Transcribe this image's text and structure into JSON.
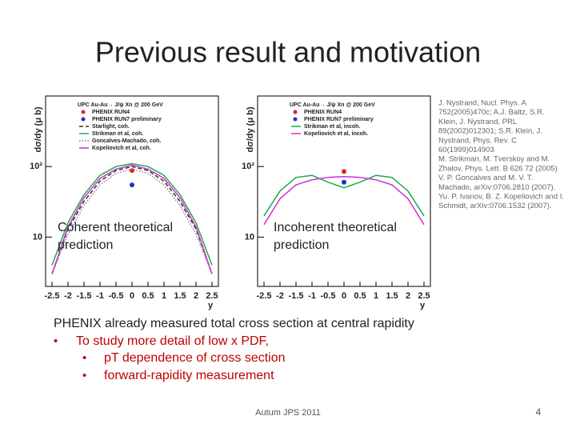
{
  "title": "Previous result and motivation",
  "chart_data": [
    {
      "type": "line",
      "legend_title": "UPC Au-Au→ J/ψ Xn @ 200 GeV",
      "xlabel": "y",
      "ylabel": "dσ/dy (μ b)",
      "xlim": [
        -2.7,
        2.7
      ],
      "xticks": [
        -2.5,
        -2,
        -1.5,
        -1,
        -0.5,
        0,
        0.5,
        1,
        1.5,
        2,
        2.5
      ],
      "ylim": [
        2,
        1000
      ],
      "log_y": true,
      "yticks": [
        10,
        {
          "value": 100,
          "label": "10²"
        }
      ],
      "series": [
        {
          "name": "PHENIX RUN4",
          "color": "#e02020",
          "marker": "point",
          "x": [
            0
          ],
          "values": [
            88
          ]
        },
        {
          "name": "PHENIX RUN7 preliminary",
          "color": "#2030c0",
          "marker": "point",
          "x": [
            0
          ],
          "values": [
            55
          ]
        },
        {
          "name": "Starlight, coh.",
          "color": "#333333",
          "marker": "dashed",
          "x": [
            -2.5,
            -2,
            -1.5,
            -1,
            -0.5,
            0,
            0.5,
            1,
            1.5,
            2,
            2.5
          ],
          "values": [
            3,
            13,
            32,
            62,
            88,
            100,
            88,
            62,
            32,
            13,
            3
          ]
        },
        {
          "name": "Strikman et al, coh.",
          "color": "#22aa44",
          "marker": "solid",
          "x": [
            -2.5,
            -2,
            -1.5,
            -1,
            -0.5,
            0,
            0.5,
            1,
            1.5,
            2,
            2.5
          ],
          "values": [
            4,
            16,
            40,
            75,
            100,
            110,
            100,
            75,
            40,
            16,
            4
          ]
        },
        {
          "name": "Goncalves-Machado, coh.",
          "color": "#888888",
          "marker": "dotted",
          "x": [
            -2.5,
            -2,
            -1.5,
            -1,
            -0.5,
            0,
            0.5,
            1,
            1.5,
            2,
            2.5
          ],
          "values": [
            3,
            11,
            28,
            55,
            80,
            92,
            80,
            55,
            28,
            11,
            3
          ]
        },
        {
          "name": "Kopeliovich et al, coh.",
          "color": "#cc33cc",
          "marker": "solid",
          "x": [
            -2.5,
            -2,
            -1.5,
            -1,
            -0.5,
            0,
            0.5,
            1,
            1.5,
            2,
            2.5
          ],
          "values": [
            3,
            14,
            36,
            68,
            92,
            105,
            92,
            68,
            36,
            14,
            3
          ]
        }
      ]
    },
    {
      "type": "line",
      "legend_title": "UPC Au-Au→ J/ψ Xn @ 200 GeV",
      "xlabel": "y",
      "ylabel": "dσ/dy (μ b)",
      "xlim": [
        -2.7,
        2.7
      ],
      "xticks": [
        -2.5,
        -2,
        -1.5,
        -1,
        -0.5,
        0,
        0.5,
        1,
        1.5,
        2,
        2.5
      ],
      "ylim": [
        2,
        1000
      ],
      "log_y": true,
      "yticks": [
        10,
        {
          "value": 100,
          "label": "10²"
        }
      ],
      "series": [
        {
          "name": "PHENIX RUN4",
          "color": "#e02020",
          "marker": "point",
          "x": [
            0
          ],
          "values": [
            85
          ]
        },
        {
          "name": "PHENIX RUN7 preliminary",
          "color": "#2030c0",
          "marker": "point",
          "x": [
            0
          ],
          "values": [
            60
          ]
        },
        {
          "name": "Strikman et al, incoh.",
          "color": "#22aa44",
          "marker": "solid",
          "x": [
            -2.5,
            -2,
            -1.5,
            -1,
            -0.5,
            0,
            0.5,
            1,
            1.5,
            2,
            2.5
          ],
          "values": [
            20,
            45,
            70,
            75,
            60,
            50,
            60,
            75,
            70,
            45,
            20
          ]
        },
        {
          "name": "Kopeliovich et al, incoh.",
          "color": "#cc33cc",
          "marker": "solid",
          "x": [
            -2.5,
            -2,
            -1.5,
            -1,
            -0.5,
            0,
            0.5,
            1,
            1.5,
            2,
            2.5
          ],
          "values": [
            15,
            35,
            55,
            65,
            70,
            72,
            70,
            65,
            55,
            35,
            15
          ]
        }
      ]
    }
  ],
  "overlays": [
    [
      "Coherent theoretical",
      "prediction"
    ],
    [
      "Incoherent theoretical",
      "prediction"
    ]
  ],
  "references": [
    "J. Nystrand, Nucl. Phys. A",
    "752(2005)470c; A.J. Baltz, S.R.",
    "Klein, J. Nystrand, PRL",
    "89(2002)012301; S.R. Klein, J.",
    "Nystrand, Phys. Rev. C",
    "60(1999)014903",
    "M. Strikman, M. Tverskoy and M.",
    "Zhalov, Phys. Lett. B 626 72 (2005)",
    "V. P. Goncalves and M. V. T.",
    "Machado, arXiv:0706.2810 (2007).",
    "Yu. P. Ivanov, B. Z. Kopeliovich and I.",
    "Schmidt, arXiv:0706.1532 (2007)."
  ],
  "body": {
    "lead": "PHENIX already measured total cross section at central rapidity",
    "bullet": "To study more detail of low x PDF,",
    "sub_bullets": [
      "pT dependence of cross section",
      "forward-rapidity measurement"
    ]
  },
  "footer": "Autum JPS 2011",
  "page_number": "4"
}
